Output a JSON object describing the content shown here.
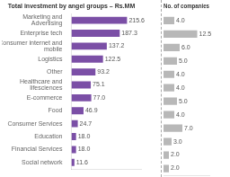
{
  "chart_data": [
    {
      "type": "bar",
      "orientation": "horizontal",
      "title": "Total investment by angel groups – Rs.MM",
      "categories": [
        "Marketing and\nAdvertising",
        "Enterprise tech",
        "Consumer internet and\nmobile",
        "Logistics",
        "Other",
        "Healthcare and\nlifesciences",
        "E-commerce",
        "Food",
        "Consumer Services",
        "Education",
        "Financial Services",
        "Social network"
      ],
      "values": [
        215.6,
        187.3,
        137.2,
        122.5,
        93.2,
        75.1,
        77.0,
        46.9,
        24.7,
        18.0,
        18.0,
        11.6
      ],
      "value_labels": [
        "215.6",
        "187.3",
        "137.2",
        "122.5",
        "93.2",
        "75.1",
        "77.0",
        "46.9",
        "24.7",
        "18.0",
        "18.0",
        "11.6"
      ],
      "color": "#7B4FA6",
      "xlim": [
        0,
        270
      ],
      "data_labels": true,
      "tick_labels": "y",
      "grid": false
    },
    {
      "type": "bar",
      "orientation": "horizontal",
      "title": "No. of companies",
      "categories": [
        "Marketing and\nAdvertising",
        "Enterprise tech",
        "Consumer internet and\nmobile",
        "Logistics",
        "Other",
        "Healthcare and\nlifesciences",
        "E-commerce",
        "Food",
        "Consumer Services",
        "Education",
        "Financial Services",
        "Social network"
      ],
      "values": [
        4.0,
        12.5,
        6.0,
        5.0,
        4.0,
        4.0,
        5.0,
        4.0,
        7.0,
        3.0,
        2.0,
        2.0
      ],
      "value_labels": [
        "4.0",
        "12.5",
        "6.0",
        "5.0",
        "4.0",
        "4.0",
        "5.0",
        "4.0",
        "7.0",
        "3.0",
        "2.0",
        "2.0"
      ],
      "color": "#B8B8B8",
      "xlim": [
        0,
        17
      ],
      "data_labels": true,
      "tick_labels": false,
      "grid": false
    }
  ]
}
